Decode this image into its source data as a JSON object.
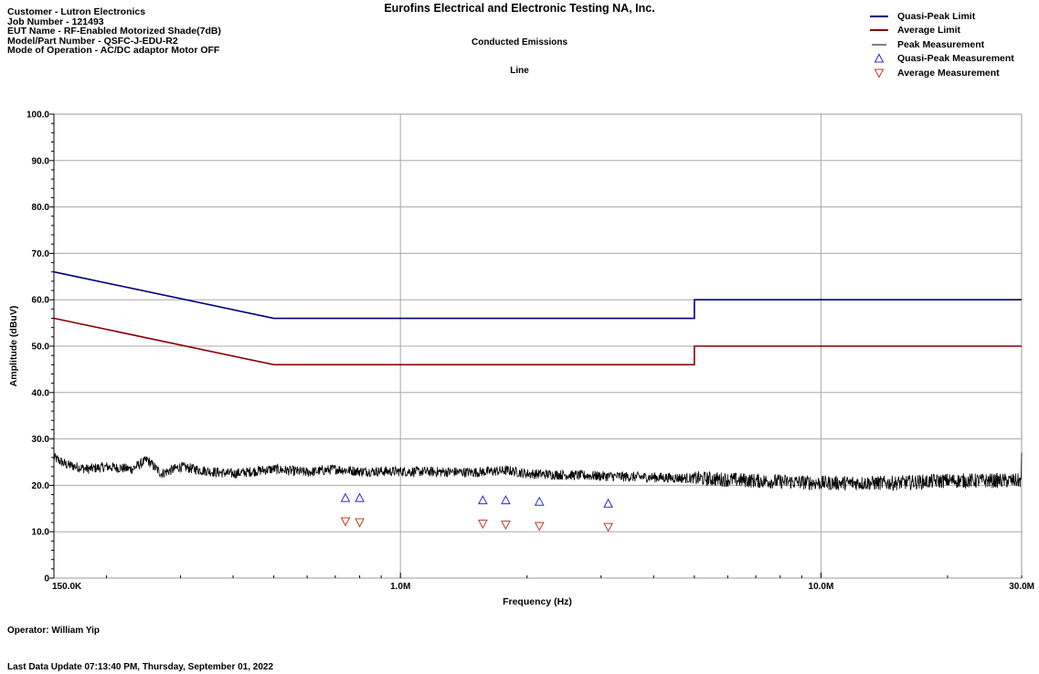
{
  "header": {
    "company": "Eurofins Electrical and Electronic Testing NA, Inc.",
    "test_name": "Conducted Emissions",
    "line": "Line",
    "info_lines": [
      "Customer - Lutron Electronics",
      "Job Number  - 121493",
      "EUT Name - RF-Enabled Motorized Shade(7dB)",
      "Model/Part Number - QSFC-J-EDU-R2",
      "Mode of Operation - AC/DC adaptor Motor OFF"
    ]
  },
  "footer": {
    "operator": "Operator: William Yip",
    "last_update": "Last Data Update 07:13:40 PM, Thursday, September 01, 2022"
  },
  "colors": {
    "quasi_peak_limit": "#00007f",
    "average_limit": "#8b0000",
    "peak_measurement": "#000000",
    "quasi_peak_marker": "#2b2bcf",
    "average_marker": "#c0392b"
  },
  "chart_data": {
    "type": "line",
    "xscale": "log",
    "xlabel": "Frequency (Hz)",
    "ylabel": "Amplitude (dBuV)",
    "xlim": [
      150000,
      30000000
    ],
    "ylim": [
      0,
      100
    ],
    "grid": true,
    "legend_position": "top-right",
    "x_ticks": [
      {
        "value": 150000,
        "label": "150.0K"
      },
      {
        "value": 1000000,
        "label": "1.0M"
      },
      {
        "value": 10000000,
        "label": "10.0M"
      },
      {
        "value": 30000000,
        "label": "30.0M"
      }
    ],
    "y_ticks": [
      {
        "value": 0,
        "label": "0"
      },
      {
        "value": 10,
        "label": "10.0"
      },
      {
        "value": 20,
        "label": "20.0"
      },
      {
        "value": 30,
        "label": "30.0"
      },
      {
        "value": 40,
        "label": "40.0"
      },
      {
        "value": 50,
        "label": "50.0"
      },
      {
        "value": 60,
        "label": "60.0"
      },
      {
        "value": 70,
        "label": "70.0"
      },
      {
        "value": 80,
        "label": "80.0"
      },
      {
        "value": 90,
        "label": "90.0"
      },
      {
        "value": 100,
        "label": "100.0"
      }
    ],
    "series": [
      {
        "name": "Quasi-Peak Limit",
        "kind": "line",
        "points": [
          [
            150000,
            66
          ],
          [
            500000,
            56
          ],
          [
            5000000,
            56
          ],
          [
            5000000,
            60
          ],
          [
            30000000,
            60
          ]
        ]
      },
      {
        "name": "Average Limit",
        "kind": "line",
        "points": [
          [
            150000,
            56
          ],
          [
            500000,
            46
          ],
          [
            5000000,
            46
          ],
          [
            5000000,
            50
          ],
          [
            30000000,
            50
          ]
        ]
      },
      {
        "name": "Peak Measurement",
        "kind": "line",
        "points": [
          [
            150000,
            26
          ],
          [
            160000,
            24.5
          ],
          [
            180000,
            23.5
          ],
          [
            200000,
            24
          ],
          [
            230000,
            23.5
          ],
          [
            250000,
            25.5
          ],
          [
            270000,
            22.5
          ],
          [
            300000,
            24
          ],
          [
            350000,
            23
          ],
          [
            400000,
            22.5
          ],
          [
            500000,
            23.5
          ],
          [
            600000,
            22.8
          ],
          [
            700000,
            23.5
          ],
          [
            800000,
            23
          ],
          [
            1000000,
            23
          ],
          [
            1500000,
            22.8
          ],
          [
            1800000,
            23.2
          ],
          [
            2000000,
            22.5
          ],
          [
            3000000,
            22
          ],
          [
            5000000,
            21.5
          ],
          [
            7000000,
            21
          ],
          [
            10000000,
            20.5
          ],
          [
            15000000,
            20.5
          ],
          [
            20000000,
            21
          ],
          [
            30000000,
            21
          ]
        ]
      },
      {
        "name": "Quasi-Peak Measurement",
        "kind": "marker-up",
        "points": [
          [
            740000,
            17.2
          ],
          [
            800000,
            17.2
          ],
          [
            1570000,
            16.7
          ],
          [
            1780000,
            16.7
          ],
          [
            2140000,
            16.4
          ],
          [
            3120000,
            16.0
          ]
        ]
      },
      {
        "name": "Average Measurement",
        "kind": "marker-down",
        "points": [
          [
            740000,
            12.3
          ],
          [
            800000,
            12.1
          ],
          [
            1570000,
            11.8
          ],
          [
            1780000,
            11.6
          ],
          [
            2140000,
            11.3
          ],
          [
            3120000,
            11.1
          ]
        ]
      }
    ]
  }
}
